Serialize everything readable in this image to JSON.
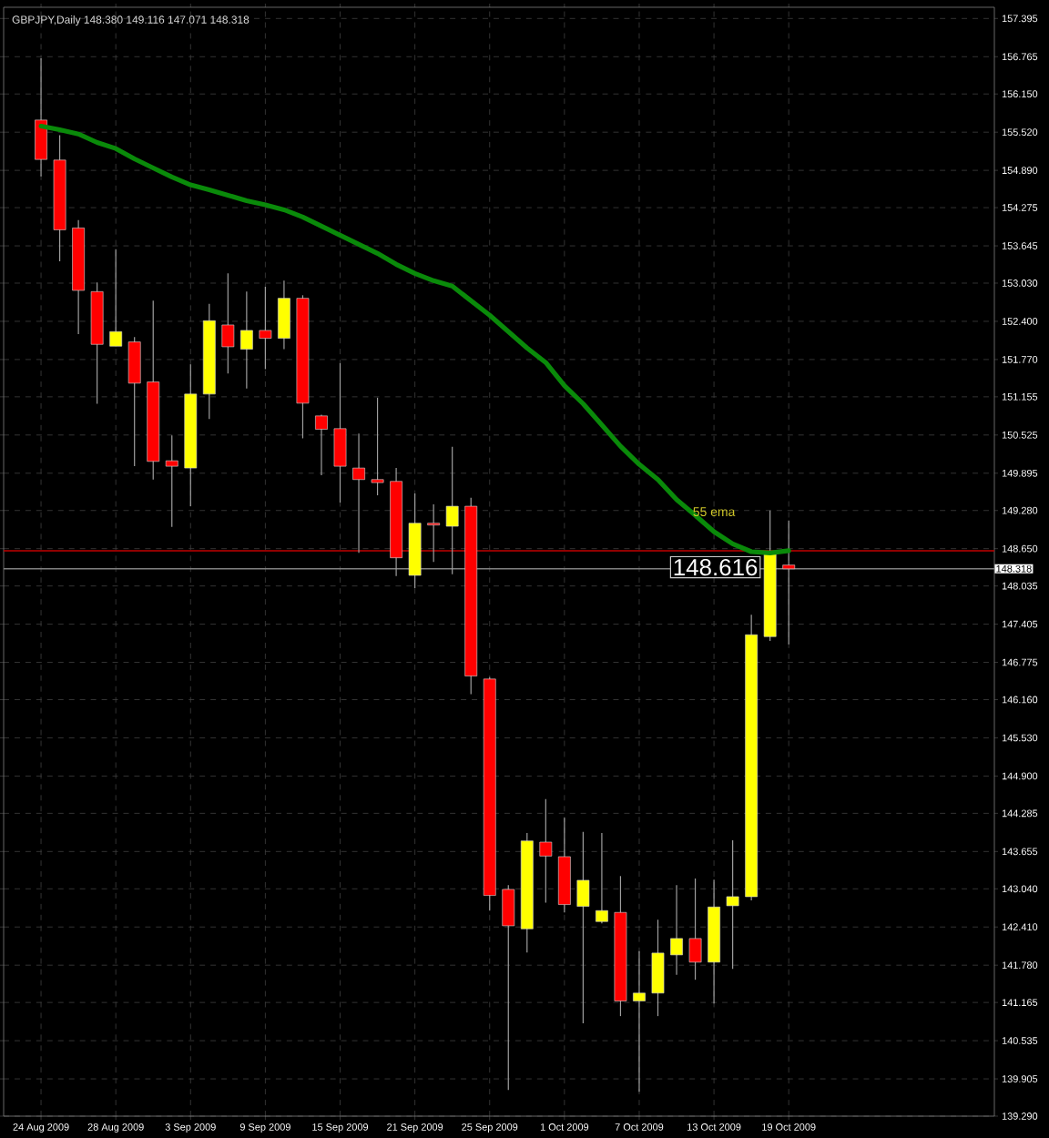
{
  "chart_data": {
    "type": "candlestick",
    "title": "GBPJPY,Daily 148.380 149.116 147.071 148.318",
    "categories": [
      "24 Aug 2009",
      null,
      null,
      null,
      "28 Aug 2009",
      null,
      null,
      null,
      "3 Sep 2009",
      null,
      null,
      null,
      "9 Sep 2009",
      null,
      null,
      null,
      "15 Sep 2009",
      null,
      null,
      null,
      "21 Sep 2009",
      null,
      null,
      null,
      "25 Sep 2009",
      null,
      null,
      null,
      "1 Oct 2009",
      null,
      null,
      null,
      "7 Oct 2009",
      null,
      null,
      null,
      "13 Oct 2009",
      null,
      null,
      null,
      "19 Oct 2009"
    ],
    "ohlc": [
      [
        155.72,
        156.74,
        154.79,
        155.07
      ],
      [
        155.06,
        155.47,
        153.39,
        153.91
      ],
      [
        153.94,
        154.07,
        152.19,
        152.91
      ],
      [
        152.89,
        153.04,
        151.04,
        152.02
      ],
      [
        151.99,
        153.59,
        151.99,
        152.23
      ],
      [
        152.06,
        152.14,
        150.01,
        151.38
      ],
      [
        151.4,
        152.74,
        149.79,
        150.09
      ],
      [
        150.1,
        150.52,
        149.01,
        150.01
      ],
      [
        149.98,
        151.69,
        149.35,
        151.2
      ],
      [
        151.2,
        152.69,
        150.79,
        152.41
      ],
      [
        152.34,
        153.19,
        151.54,
        151.98
      ],
      [
        151.94,
        152.89,
        151.29,
        152.25
      ],
      [
        152.25,
        152.97,
        151.61,
        152.12
      ],
      [
        152.12,
        153.07,
        151.94,
        152.78
      ],
      [
        152.78,
        152.83,
        150.47,
        151.05
      ],
      [
        150.84,
        150.86,
        149.86,
        150.62
      ],
      [
        150.63,
        151.71,
        149.41,
        150.01
      ],
      [
        149.98,
        150.55,
        148.58,
        149.79
      ],
      [
        149.79,
        151.14,
        149.53,
        149.74
      ],
      [
        149.76,
        149.98,
        148.2,
        148.5
      ],
      [
        148.21,
        149.56,
        148.0,
        149.07
      ],
      [
        149.07,
        149.38,
        148.43,
        149.04
      ],
      [
        149.02,
        150.33,
        148.23,
        149.35
      ],
      [
        149.35,
        149.49,
        146.25,
        146.55
      ],
      [
        146.5,
        146.53,
        142.68,
        142.93
      ],
      [
        143.03,
        143.1,
        139.72,
        142.43
      ],
      [
        142.38,
        143.96,
        141.99,
        143.83
      ],
      [
        143.81,
        144.52,
        142.81,
        143.58
      ],
      [
        143.57,
        144.21,
        142.65,
        142.78
      ],
      [
        142.75,
        143.98,
        140.82,
        143.18
      ],
      [
        142.5,
        143.96,
        142.47,
        142.68
      ],
      [
        142.65,
        143.25,
        140.94,
        141.19
      ],
      [
        141.19,
        142.01,
        139.69,
        141.32
      ],
      [
        141.32,
        142.53,
        140.94,
        141.98
      ],
      [
        141.95,
        143.1,
        141.62,
        142.22
      ],
      [
        142.22,
        143.21,
        141.54,
        141.83
      ],
      [
        141.83,
        143.19,
        141.15,
        142.74
      ],
      [
        142.76,
        143.84,
        141.72,
        142.91
      ],
      [
        142.91,
        147.56,
        142.85,
        147.23
      ],
      [
        147.2,
        149.28,
        147.13,
        148.56
      ],
      [
        148.38,
        149.116,
        147.071,
        148.318
      ]
    ],
    "colors": [
      "#ff0000",
      "#ff0000",
      "#ff0000",
      "#ff0000",
      "#ffff00",
      "#ff0000",
      "#ff0000",
      "#ff0000",
      "#ffff00",
      "#ffff00",
      "#ff0000",
      "#ffff00",
      "#ff0000",
      "#ffff00",
      "#ff0000",
      "#ff0000",
      "#ff0000",
      "#ff0000",
      "#ff0000",
      "#ff0000",
      "#ffff00",
      "#ff0000",
      "#ffff00",
      "#ff0000",
      "#ff0000",
      "#ff0000",
      "#ffff00",
      "#ff0000",
      "#ff0000",
      "#ffff00",
      "#ffff00",
      "#ff0000",
      "#ffff00",
      "#ffff00",
      "#ffff00",
      "#ff0000",
      "#ffff00",
      "#ffff00",
      "#ffff00",
      "#ffff00",
      "#ff0000"
    ],
    "series": [
      {
        "name": "55 ema",
        "type": "line",
        "color": "#0a8a0a",
        "values": [
          155.62,
          155.56,
          155.49,
          155.35,
          155.25,
          155.08,
          154.93,
          154.78,
          154.65,
          154.57,
          154.48,
          154.39,
          154.32,
          154.24,
          154.12,
          153.97,
          153.82,
          153.67,
          153.52,
          153.34,
          153.19,
          153.07,
          152.98,
          152.74,
          152.5,
          152.23,
          151.96,
          151.72,
          151.34,
          151.04,
          150.69,
          150.34,
          150.04,
          149.79,
          149.46,
          149.2,
          148.93,
          148.73,
          148.6,
          148.58,
          148.616
        ]
      }
    ],
    "ylim": [
      139.29,
      157.58
    ],
    "yticks": [
      {
        "value": 139.29,
        "label": "139.290"
      },
      139.905,
      140.535,
      141.165,
      {
        "value": 141.78,
        "label": "141.780"
      },
      {
        "value": 142.41,
        "label": "142.410"
      },
      {
        "value": 143.04,
        "label": "143.040"
      },
      143.655,
      144.285,
      {
        "value": 144.9,
        "label": "144.900"
      },
      {
        "value": 145.53,
        "label": "145.530"
      },
      {
        "value": 146.16,
        "label": "146.160"
      },
      146.775,
      147.405,
      148.035,
      {
        "value": 148.65,
        "label": "148.650"
      },
      {
        "value": 149.28,
        "label": "149.280"
      },
      149.895,
      150.525,
      151.155,
      {
        "value": 151.77,
        "label": "151.770"
      },
      {
        "value": 152.4,
        "label": "152.400"
      },
      {
        "value": 153.03,
        "label": "153.030"
      },
      153.645,
      154.275,
      {
        "value": 154.89,
        "label": "154.890"
      },
      {
        "value": 155.52,
        "label": "155.520"
      },
      {
        "value": 156.15,
        "label": "156.150"
      },
      156.765,
      157.395
    ],
    "ref_lines": [
      {
        "axis": "y",
        "value": 148.616,
        "color": "#c00000"
      },
      {
        "axis": "y",
        "value": 148.318,
        "label": "148.318",
        "color": "#808080"
      }
    ],
    "annotations": [
      {
        "text": "148.616",
        "x": "19 Oct 2009",
        "y": 148.616
      }
    ],
    "grid": true
  }
}
